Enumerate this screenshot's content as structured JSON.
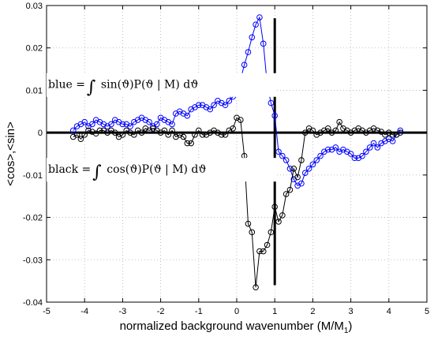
{
  "chart_data": {
    "type": "line",
    "xlabel": "normalized background wavenumber (M/M",
    "xlabel_sub": "1",
    "xlabel_close": ")",
    "ylabel": "<cos>,<sin>",
    "xlim": [
      -5,
      5
    ],
    "ylim": [
      -0.04,
      0.03
    ],
    "xticks": [
      -5,
      -4,
      -3,
      -2,
      -1,
      0,
      1,
      2,
      3,
      4,
      5
    ],
    "yticks": [
      -0.04,
      -0.03,
      -0.02,
      -0.01,
      0,
      0.01,
      0.02,
      0.03
    ],
    "xtick_labels": [
      "-5",
      "-4",
      "-3",
      "-2",
      "-1",
      "0",
      "1",
      "2",
      "3",
      "4",
      "5"
    ],
    "ytick_labels": [
      "-0.04",
      "-0.03",
      "-0.02",
      "-0.01",
      "0",
      "0.01",
      "0.02",
      "0.03"
    ],
    "grid": "dotted",
    "reference_lines": {
      "horizontal_y": 0,
      "vertical_x": 1,
      "vertical_from": -0.036,
      "vertical_to": 0.027
    },
    "annotations": [
      {
        "prefix": "blue",
        "integrand": "sin(ϑ)P(ϑ | M) dϑ",
        "at": [
          -5,
          0.0105
        ]
      },
      {
        "prefix": "black",
        "integrand": "cos(ϑ)P(ϑ | M) dϑ",
        "at": [
          -5,
          -0.0095
        ]
      }
    ],
    "series": [
      {
        "color": "#0000ff",
        "marker": "circle",
        "x": [
          -4.3,
          -4.2,
          -4.1,
          -4.0,
          -3.9,
          -3.8,
          -3.7,
          -3.6,
          -3.5,
          -3.4,
          -3.3,
          -3.2,
          -3.1,
          -3.0,
          -2.9,
          -2.8,
          -2.7,
          -2.6,
          -2.5,
          -2.4,
          -2.3,
          -2.2,
          -2.1,
          -2.0,
          -1.9,
          -1.8,
          -1.7,
          -1.6,
          -1.5,
          -1.4,
          -1.3,
          -1.2,
          -1.1,
          -1.0,
          -0.9,
          -0.8,
          -0.7,
          -0.6,
          -0.5,
          -0.4,
          -0.3,
          -0.2,
          -0.1,
          0.0,
          0.1,
          0.2,
          0.3,
          0.4,
          0.5,
          0.6,
          0.7,
          0.8,
          0.9,
          1.0,
          1.1,
          1.2,
          1.3,
          1.4,
          1.5,
          1.6,
          1.7,
          1.8,
          1.9,
          2.0,
          2.1,
          2.2,
          2.3,
          2.4,
          2.5,
          2.6,
          2.7,
          2.8,
          2.9,
          3.0,
          3.1,
          3.2,
          3.3,
          3.4,
          3.5,
          3.6,
          3.7,
          3.8,
          3.9,
          4.0,
          4.1,
          4.2,
          4.3
        ],
        "y": [
          0.0005,
          0.0015,
          0.002,
          0.0025,
          0.0015,
          0.002,
          0.003,
          0.0025,
          0.002,
          0.0015,
          0.002,
          0.003,
          0.0025,
          0.002,
          0.002,
          0.0015,
          0.0025,
          0.003,
          0.0035,
          0.003,
          0.0025,
          0.0015,
          0.002,
          0.0035,
          0.003,
          0.0025,
          0.002,
          0.0045,
          0.005,
          0.0045,
          0.004,
          0.0055,
          0.006,
          0.0065,
          0.0065,
          0.006,
          0.0055,
          0.0065,
          0.0075,
          0.007,
          0.0065,
          0.0075,
          0.0085,
          0.0095,
          0.0125,
          0.016,
          0.019,
          0.0225,
          0.0255,
          0.0272,
          0.021,
          0.0115,
          0.007,
          0.004,
          -0.0045,
          -0.0055,
          -0.0065,
          -0.0085,
          -0.011,
          -0.0125,
          -0.012,
          -0.0095,
          -0.0085,
          -0.0075,
          -0.0065,
          -0.0055,
          -0.0045,
          -0.004,
          -0.004,
          -0.0035,
          -0.0045,
          -0.004,
          -0.0045,
          -0.005,
          -0.006,
          -0.006,
          -0.0055,
          -0.0045,
          -0.0035,
          -0.0025,
          -0.0035,
          -0.0025,
          -0.002,
          -0.0015,
          -0.002,
          -0.0005,
          0.0005
        ]
      },
      {
        "color": "#000000",
        "marker": "circle",
        "x": [
          -4.3,
          -4.2,
          -4.1,
          -4.0,
          -3.9,
          -3.8,
          -3.7,
          -3.6,
          -3.5,
          -3.4,
          -3.3,
          -3.2,
          -3.1,
          -3.0,
          -2.9,
          -2.8,
          -2.7,
          -2.6,
          -2.5,
          -2.4,
          -2.3,
          -2.2,
          -2.1,
          -2.0,
          -1.9,
          -1.8,
          -1.7,
          -1.6,
          -1.5,
          -1.4,
          -1.3,
          -1.2,
          -1.1,
          -1.0,
          -0.9,
          -0.8,
          -0.7,
          -0.6,
          -0.5,
          -0.4,
          -0.3,
          -0.2,
          -0.1,
          0.0,
          0.1,
          0.2,
          0.3,
          0.4,
          0.5,
          0.6,
          0.7,
          0.8,
          0.9,
          1.0,
          1.1,
          1.2,
          1.3,
          1.4,
          1.5,
          1.6,
          1.7,
          1.8,
          1.9,
          2.0,
          2.1,
          2.2,
          2.3,
          2.4,
          2.5,
          2.6,
          2.7,
          2.8,
          2.9,
          3.0,
          3.1,
          3.2,
          3.3,
          3.4,
          3.5,
          3.6,
          3.7,
          3.8,
          3.9,
          4.0,
          4.1,
          4.2,
          4.3
        ],
        "y": [
          -0.001,
          -0.0005,
          -0.0015,
          -0.0005,
          0.0005,
          0.0002,
          -0.0002,
          0.0005,
          0.0005,
          0.0,
          0.0005,
          0.0,
          -0.001,
          -0.0005,
          0.0005,
          0.0,
          -0.0005,
          0.0005,
          0.0,
          0.001,
          0.0005,
          0.001,
          0.0005,
          0.0,
          0.0005,
          -0.0005,
          0.0005,
          -0.001,
          -0.0005,
          -0.001,
          -0.0025,
          -0.0025,
          -0.0005,
          0.0005,
          -0.0005,
          -0.0005,
          0.0,
          0.0005,
          0.0,
          -0.0005,
          -0.0005,
          0.0005,
          0.001,
          0.0035,
          0.003,
          -0.0055,
          -0.0215,
          -0.0235,
          -0.0365,
          -0.028,
          -0.028,
          -0.0265,
          -0.0235,
          -0.0175,
          -0.021,
          -0.0195,
          -0.0145,
          -0.0135,
          -0.0085,
          -0.0105,
          -0.0065,
          0.0,
          0.001,
          0.0005,
          -0.0005,
          0.0,
          0.0005,
          0.001,
          0.0,
          0.0005,
          0.0025,
          0.001,
          0.0005,
          0.0,
          0.0005,
          0.001,
          0.0005,
          0.0,
          0.0005,
          0.001,
          0.0005,
          0.0002,
          -0.0005,
          0.0,
          -0.0005,
          -0.0005,
          0.0
        ]
      }
    ]
  }
}
